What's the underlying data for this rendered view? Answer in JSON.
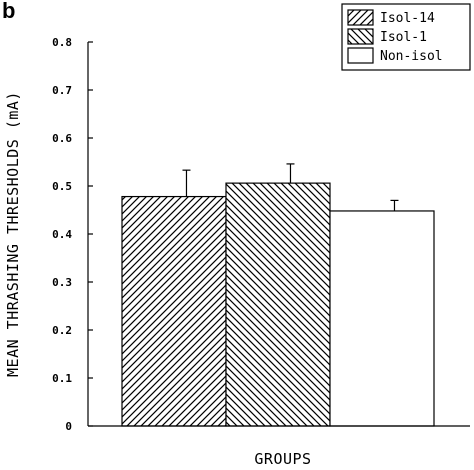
{
  "panel_label": "b",
  "chart_data": {
    "type": "bar",
    "title": "",
    "xlabel": "GROUPS",
    "ylabel": "MEAN THRASHING THRESHOLDS (mA)",
    "ylim": [
      0,
      0.8
    ],
    "yticks": [
      0,
      0.1,
      0.2,
      0.3,
      0.4,
      0.5,
      0.6,
      0.7,
      0.8
    ],
    "ytick_labels": [
      "0",
      "0.1",
      "0.2",
      "0.3",
      "0.4",
      "0.5",
      "0.6",
      "0.7",
      "0.8"
    ],
    "series": [
      {
        "name": "Isol-14",
        "value": 0.478,
        "error": 0.055,
        "pattern": "diagonal-up"
      },
      {
        "name": "Isol-1",
        "value": 0.506,
        "error": 0.04,
        "pattern": "diagonal-down"
      },
      {
        "name": "Non-isol",
        "value": 0.448,
        "error": 0.022,
        "pattern": "empty"
      }
    ],
    "legend_position": "top-right",
    "grid": false,
    "colors": {
      "stroke": "#000000",
      "fill_background": "#ffffff"
    }
  }
}
